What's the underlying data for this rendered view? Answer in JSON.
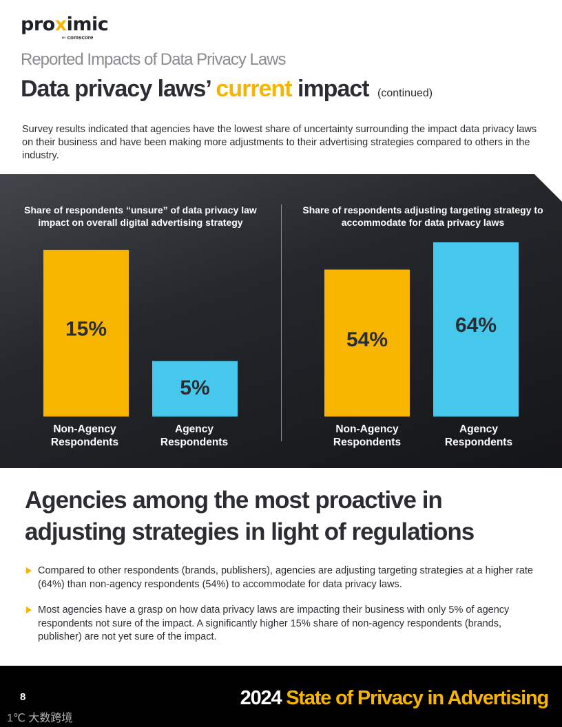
{
  "brand": {
    "logo_pre": "pro",
    "logo_x": "x",
    "logo_post": "imic",
    "logo_by": "BY",
    "logo_sub": "comscore"
  },
  "header": {
    "kicker": "Reported Impacts of Data Privacy Laws",
    "title_pre": "Data privacy laws’ ",
    "title_accent": "current",
    "title_post": " impact",
    "title_note": "(continued)"
  },
  "intro": "Survey results indicated that agencies have the lowest share of uncertainty surrounding the impact data privacy laws on their business and have been making more adjustments to their advertising strategies compared to others in the industry.",
  "colors": {
    "accent": "#f7b500",
    "bar_yellow": "#f7b500",
    "bar_blue": "#45c8eb",
    "panel_dark": "#1e2024",
    "text_dark": "#2b2d33"
  },
  "chart_data": [
    {
      "type": "bar",
      "title": "Share of respondents “unsure” of data privacy law impact on overall digital advertising strategy",
      "categories": [
        "Non-Agency Respondents",
        "Agency Respondents"
      ],
      "category_lines": [
        [
          "Non-Agency",
          "Respondents"
        ],
        [
          "Agency",
          "Respondents"
        ]
      ],
      "values": [
        15,
        5
      ],
      "value_labels": [
        "15%",
        "5%"
      ],
      "colors": [
        "#f7b500",
        "#45c8eb"
      ],
      "ylim": [
        0,
        15.8
      ]
    },
    {
      "type": "bar",
      "title": "Share of respondents adjusting targeting strategy to accommodate for data privacy laws",
      "categories": [
        "Non-Agency Respondents",
        "Agency Respondents"
      ],
      "category_lines": [
        [
          "Non-Agency",
          "Respondents"
        ],
        [
          "Agency",
          "Respondents"
        ]
      ],
      "values": [
        54,
        64
      ],
      "value_labels": [
        "54%",
        "64%"
      ],
      "colors": [
        "#f7b500",
        "#45c8eb"
      ],
      "ylim": [
        0,
        64.5
      ]
    }
  ],
  "section": {
    "heading": "Agencies among the most proactive in adjusting strategies in light of regulations",
    "bullets": [
      "Compared to other respondents (brands, publishers), agencies are adjusting targeting strategies at a higher rate (64%) than non-agency respondents (54%) to accommodate for data privacy laws.",
      "Most agencies have a grasp on how data privacy laws are impacting their business with only 5% of agency respondents not sure of the impact. A significantly higher 15% share of non-agency respondents (brands, publisher) are not yet sure of the impact."
    ]
  },
  "footer": {
    "page_number": "8",
    "year": "2024",
    "title": "State of Privacy in Advertising",
    "watermark": "大数跨境"
  }
}
